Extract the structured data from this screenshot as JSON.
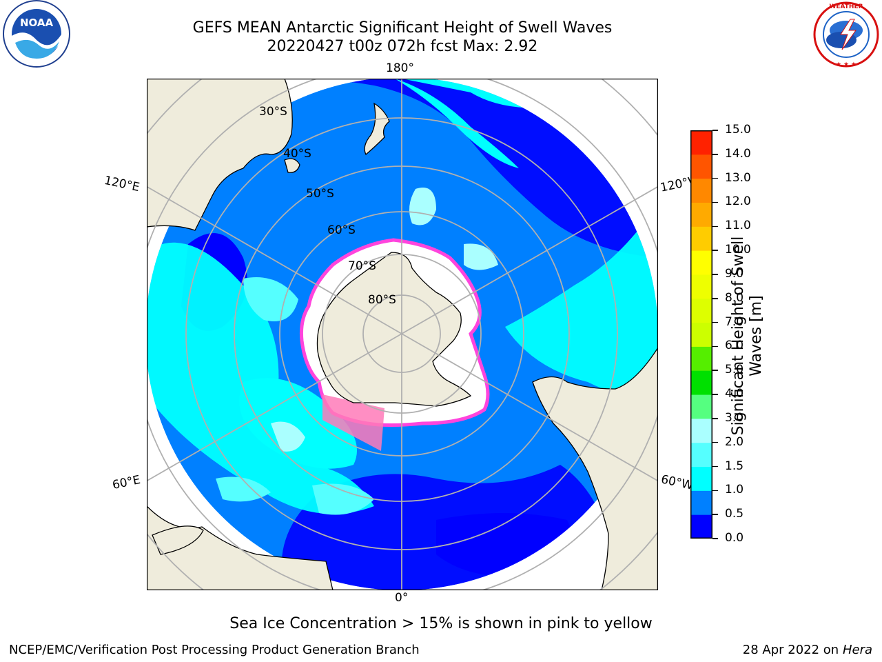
{
  "header": {
    "title_line1": "GEFS MEAN Antarctic Significant Height of Swell Waves",
    "title_line2": "20220427 t00z 072h fcst   Max: 2.92"
  },
  "logos": {
    "left": {
      "name": "noara-logo",
      "text": "NOAA",
      "ring_text": "NATIONAL OCEANIC AND ATMOSPHERIC ADMINISTRATION · U.S. DEPARTMENT OF COMMERCE"
    },
    "right": {
      "name": "nws-logo",
      "ring_text": "NATIONAL WEATHER SERVICE"
    }
  },
  "map": {
    "projection": "south-polar-stereographic",
    "lat_labels": [
      "30°S",
      "40°S",
      "50°S",
      "60°S",
      "70°S",
      "80°S"
    ],
    "lon_labels": {
      "top": "180°",
      "bottom": "0°",
      "upper_left": "120°E",
      "upper_right": "120°W",
      "lower_left": "60°E",
      "lower_right": "60°W"
    },
    "colors": {
      "land": "#efecdc",
      "sea_ice": "#ffffff",
      "ice_edge": "#ff44dd",
      "ice_edge_yellow": "#ffcc33",
      "grid": "#b0b0b0"
    }
  },
  "colorbar": {
    "label": "Significant Height of Swell Waves [m]",
    "label_line1": "Significant Height of Swell",
    "label_line2": "Waves [m]",
    "ticks": [
      "15.0",
      "14.0",
      "13.0",
      "12.0",
      "11.0",
      "10.0",
      "9.0",
      "8.0",
      "7.0",
      "6.0",
      "5.0",
      "4.0",
      "3.0",
      "2.0",
      "1.5",
      "1.0",
      "0.5",
      "0.0"
    ],
    "bins": [
      {
        "from": 0.0,
        "to": 0.5,
        "color": "#0000ff"
      },
      {
        "from": 0.5,
        "to": 1.0,
        "color": "#0080ff"
      },
      {
        "from": 1.0,
        "to": 1.5,
        "color": "#00ffff"
      },
      {
        "from": 1.5,
        "to": 2.0,
        "color": "#55ffff"
      },
      {
        "from": 2.0,
        "to": 3.0,
        "color": "#aaffff"
      },
      {
        "from": 3.0,
        "to": 4.0,
        "color": "#55ff80"
      },
      {
        "from": 4.0,
        "to": 5.0,
        "color": "#00e000"
      },
      {
        "from": 5.0,
        "to": 6.0,
        "color": "#55ee00"
      },
      {
        "from": 6.0,
        "to": 7.0,
        "color": "#ccff00"
      },
      {
        "from": 7.0,
        "to": 8.0,
        "color": "#ddff00"
      },
      {
        "from": 8.0,
        "to": 9.0,
        "color": "#eeff00"
      },
      {
        "from": 9.0,
        "to": 10.0,
        "color": "#ffff00"
      },
      {
        "from": 10.0,
        "to": 11.0,
        "color": "#ffcc00"
      },
      {
        "from": 11.0,
        "to": 12.0,
        "color": "#ffaa00"
      },
      {
        "from": 12.0,
        "to": 13.0,
        "color": "#ff8800"
      },
      {
        "from": 13.0,
        "to": 14.0,
        "color": "#ff5500"
      },
      {
        "from": 14.0,
        "to": 15.0,
        "color": "#ff2200"
      }
    ]
  },
  "caption": "Sea Ice Concentration > 15% is shown in pink to yellow",
  "footer": {
    "left": "NCEP/EMC/Verification Post Processing Product Generation Branch",
    "date": "28 Apr 2022 on ",
    "host": "Hera"
  }
}
